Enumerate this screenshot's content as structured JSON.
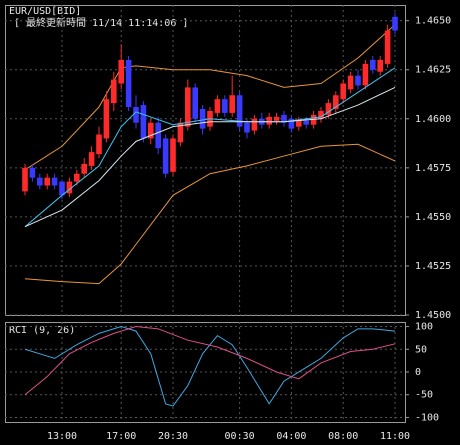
{
  "header": {
    "symbol": "EUR/USD[BID]",
    "updated": "[ 最終更新時間 11/14 11:14:06 ]"
  },
  "chart_data": [
    {
      "type": "candlestick",
      "categories": [
        null,
        null,
        null,
        null,
        null,
        "13:00",
        null,
        null,
        null,
        null,
        null,
        null,
        null,
        "17:00",
        null,
        null,
        null,
        null,
        null,
        null,
        "20:30",
        null,
        null,
        null,
        null,
        null,
        null,
        null,
        null,
        "00:30",
        null,
        null,
        null,
        null,
        null,
        null,
        "04:00",
        null,
        null,
        null,
        null,
        null,
        null,
        "08:00",
        null,
        null,
        null,
        null,
        null,
        null,
        "11:00"
      ],
      "open": [
        1.4563,
        1.4575,
        1.457,
        1.4566,
        1.457,
        1.4568,
        1.4562,
        1.4568,
        1.4572,
        1.4576,
        1.4582,
        1.459,
        1.4608,
        1.4618,
        1.463,
        1.4606,
        1.4607,
        1.459,
        1.4598,
        1.459,
        1.4573,
        1.4588,
        1.4596,
        1.4616,
        1.4605,
        1.4596,
        1.4603,
        1.461,
        1.4603,
        1.4612,
        1.4598,
        1.4594,
        1.46,
        1.4597,
        1.4599,
        1.4602,
        1.46,
        1.4596,
        1.4599,
        1.4597,
        1.46,
        1.4602,
        1.4605,
        1.461,
        1.4615,
        1.4622,
        1.4617,
        1.463,
        1.4624,
        1.4628,
        1.4652
      ],
      "high": [
        1.4577,
        1.4577,
        1.4572,
        1.4572,
        1.4572,
        1.4569,
        1.457,
        1.4574,
        1.458,
        1.4586,
        1.4596,
        1.4614,
        1.4624,
        1.4638,
        1.4632,
        1.4612,
        1.4609,
        1.46,
        1.4601,
        1.4592,
        1.4592,
        1.46,
        1.462,
        1.4618,
        1.4607,
        1.4606,
        1.4612,
        1.4612,
        1.4622,
        1.4614,
        1.46,
        1.4602,
        1.4603,
        1.4603,
        1.4603,
        1.4604,
        1.4601,
        1.4601,
        1.4601,
        1.4604,
        1.4606,
        1.461,
        1.4614,
        1.462,
        1.4624,
        1.4625,
        1.463,
        1.4632,
        1.4632,
        1.4648,
        1.4654
      ],
      "low": [
        1.4561,
        1.4568,
        1.4564,
        1.4564,
        1.4564,
        1.4559,
        1.456,
        1.4566,
        1.457,
        1.4574,
        1.458,
        1.4588,
        1.4604,
        1.4615,
        1.4604,
        1.4595,
        1.4588,
        1.4587,
        1.4582,
        1.457,
        1.4571,
        1.4586,
        1.4594,
        1.4598,
        1.4592,
        1.4594,
        1.4601,
        1.4601,
        1.4601,
        1.4594,
        1.459,
        1.4592,
        1.4595,
        1.4595,
        1.4597,
        1.4596,
        1.4593,
        1.4594,
        1.4595,
        1.4595,
        1.4598,
        1.46,
        1.4603,
        1.4608,
        1.4613,
        1.4615,
        1.4615,
        1.4623,
        1.4622,
        1.4626,
        1.4643
      ],
      "close": [
        1.4575,
        1.457,
        1.4566,
        1.457,
        1.4566,
        1.4561,
        1.4568,
        1.4572,
        1.4577,
        1.4583,
        1.4592,
        1.461,
        1.462,
        1.463,
        1.4606,
        1.4598,
        1.459,
        1.4598,
        1.4585,
        1.4572,
        1.459,
        1.4598,
        1.4616,
        1.46,
        1.4595,
        1.4604,
        1.461,
        1.4603,
        1.4612,
        1.4596,
        1.4593,
        1.46,
        1.4597,
        1.4601,
        1.4601,
        1.4598,
        1.4595,
        1.4599,
        1.4597,
        1.4602,
        1.4604,
        1.4608,
        1.4612,
        1.4618,
        1.4622,
        1.4617,
        1.4628,
        1.4625,
        1.463,
        1.4645,
        1.4645
      ],
      "up_color": "#ff2a2a",
      "down_color": "#3a3aff",
      "overlays": [
        {
          "color": "#e8963a",
          "x": [
            0,
            5,
            10,
            13,
            15,
            20,
            25,
            30,
            35,
            40,
            45,
            50
          ],
          "values": [
            1.4574,
            1.4586,
            1.4606,
            1.4626,
            1.4627,
            1.4625,
            1.4625,
            1.4622,
            1.4616,
            1.4618,
            1.4631,
            1.4648
          ]
        },
        {
          "color": "#e8963a",
          "x": [
            0,
            5,
            10,
            13,
            15,
            20,
            25,
            30,
            35,
            40,
            45,
            50
          ],
          "values": [
            1.45185,
            1.4517,
            1.4516,
            1.4526,
            1.4536,
            1.4561,
            1.4572,
            1.4576,
            1.4581,
            1.4586,
            1.4587,
            1.45785
          ]
        },
        {
          "color": "#3fc4f0",
          "x": [
            0,
            5,
            10,
            13,
            15,
            20,
            25,
            30,
            35,
            40,
            45,
            50
          ],
          "values": [
            1.4545,
            1.4561,
            1.4576,
            1.4596,
            1.46035,
            1.4597,
            1.46,
            1.45985,
            1.45985,
            1.4601,
            1.46135,
            1.4626
          ]
        },
        {
          "color": "#d8e8f0",
          "x": [
            0,
            5,
            10,
            13,
            15,
            20,
            25,
            30,
            35,
            40,
            45,
            50
          ],
          "values": [
            1.4545,
            1.45535,
            1.45685,
            1.4581,
            1.45885,
            1.4596,
            1.45985,
            1.45985,
            1.45985,
            1.46,
            1.4607,
            1.4616
          ]
        }
      ],
      "ylim": [
        1.45,
        1.4658
      ],
      "yticks": [
        {
          "value": 1.465,
          "label": "1.4650"
        },
        1.4625,
        {
          "value": 1.46,
          "label": "1.4600"
        },
        1.4575,
        {
          "value": 1.455,
          "label": "1.4550"
        },
        1.4525,
        {
          "value": 1.45,
          "label": "1.4500"
        }
      ],
      "grid": true
    },
    {
      "type": "line",
      "title": "RCI (9, 26)",
      "series": [
        {
          "color": "#3fa8e0",
          "x": [
            0,
            2,
            4,
            7,
            10,
            13,
            15,
            17,
            19,
            20,
            22,
            24,
            26,
            28,
            30,
            33,
            35,
            38,
            40,
            43,
            45,
            47,
            50
          ],
          "values": [
            50,
            40,
            30,
            60,
            85,
            100,
            90,
            40,
            -70,
            -75,
            -30,
            40,
            80,
            60,
            10,
            -70,
            -20,
            10,
            30,
            75,
            95,
            95,
            90
          ]
        },
        {
          "color": "#e0508a",
          "x": [
            0,
            3,
            6,
            9,
            12,
            15,
            18,
            22,
            26,
            30,
            34,
            37,
            40,
            44,
            47,
            50
          ],
          "values": [
            -50,
            -10,
            40,
            65,
            85,
            100,
            95,
            70,
            55,
            30,
            0,
            -15,
            20,
            45,
            50,
            62
          ]
        }
      ],
      "ylim": [
        -110,
        110
      ],
      "yticks": [
        100,
        50,
        0,
        -50,
        -100
      ],
      "grid": true
    }
  ]
}
